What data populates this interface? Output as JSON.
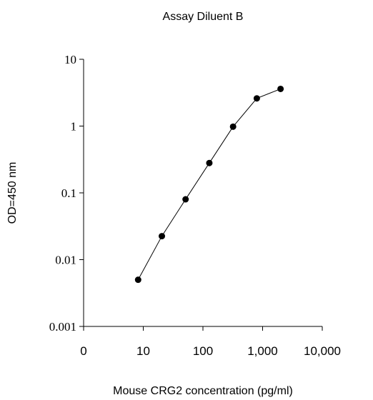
{
  "chart_data": {
    "type": "scatter",
    "title": "Assay Diluent B",
    "xlabel": "Mouse CRG2 concentration (pg/ml)",
    "ylabel": "OD=450 nm",
    "x_scale": "log",
    "y_scale": "log",
    "xlim": [
      1,
      10000
    ],
    "ylim": [
      0.001,
      10
    ],
    "x_ticks": [
      {
        "value": 1,
        "label": "0"
      },
      {
        "value": 10,
        "label": "10"
      },
      {
        "value": 100,
        "label": "100"
      },
      {
        "value": 1000,
        "label": "1,000"
      },
      {
        "value": 10000,
        "label": "10,000"
      }
    ],
    "y_ticks": [
      {
        "value": 0.001,
        "label": "0.001"
      },
      {
        "value": 0.01,
        "label": "0.01"
      },
      {
        "value": 0.1,
        "label": "0.1"
      },
      {
        "value": 1,
        "label": "1"
      },
      {
        "value": 10,
        "label": "10"
      }
    ],
    "grid": false,
    "connected": true,
    "marker_color": "#000000",
    "line_color": "#000000",
    "series": [
      {
        "x": [
          8.2,
          20.5,
          51.2,
          128,
          320,
          800,
          2000
        ],
        "y": [
          0.005,
          0.0225,
          0.08,
          0.28,
          0.98,
          2.6,
          3.6
        ]
      }
    ]
  }
}
